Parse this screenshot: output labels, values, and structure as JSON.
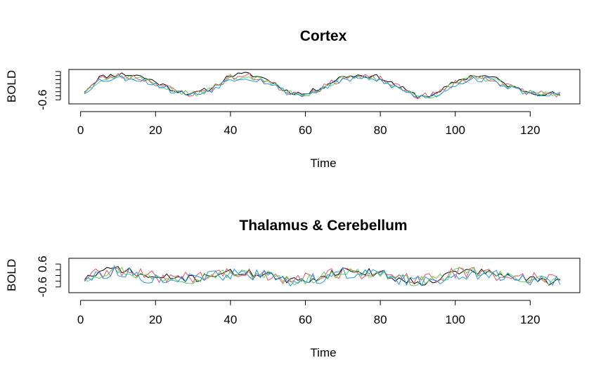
{
  "figure": {
    "panels_count": 2
  },
  "chart_data": [
    {
      "type": "line",
      "title": "Cortex",
      "xlabel": "Time",
      "ylabel": "BOLD",
      "xlim": [
        1,
        128
      ],
      "ylim": [
        -0.8,
        0.9
      ],
      "x_ticks": [
        0,
        20,
        40,
        60,
        80,
        100,
        120
      ],
      "y_ticks_labeled": [
        -0.6
      ],
      "y_ticks_minor": [
        -0.4,
        -0.2,
        0.0,
        0.2,
        0.4,
        0.6,
        0.8
      ],
      "grid": false,
      "legend": "none",
      "colors": [
        "#000000",
        "#df536b",
        "#61d04f",
        "#2297e6"
      ],
      "waveform": {
        "x": [
          1,
          5,
          10,
          15,
          20,
          25,
          30,
          35,
          40,
          45,
          50,
          55,
          60,
          65,
          70,
          75,
          80,
          85,
          90,
          95,
          100,
          105,
          110,
          115,
          120,
          125,
          128
        ],
        "y": [
          -0.2,
          0.45,
          0.6,
          0.55,
          0.25,
          -0.15,
          -0.35,
          -0.05,
          0.55,
          0.6,
          0.35,
          -0.2,
          -0.35,
          0.05,
          0.5,
          0.55,
          0.45,
          0.0,
          -0.45,
          -0.35,
          0.25,
          0.55,
          0.45,
          0.0,
          -0.25,
          -0.3,
          -0.35
        ]
      },
      "series": [
        {
          "color": "#000000",
          "offset": 0.04,
          "amp": 1.05,
          "noise": 0.12,
          "seed": 11
        },
        {
          "color": "#df536b",
          "offset": 0.0,
          "amp": 0.95,
          "noise": 0.16,
          "seed": 23
        },
        {
          "color": "#61d04f",
          "offset": -0.02,
          "amp": 0.95,
          "noise": 0.14,
          "seed": 37
        },
        {
          "color": "#2297e6",
          "offset": -0.05,
          "amp": 0.9,
          "noise": 0.15,
          "seed": 53
        }
      ]
    },
    {
      "type": "line",
      "title": "Thalamus & Cerebellum",
      "xlabel": "Time",
      "ylabel": "BOLD",
      "xlim": [
        1,
        128
      ],
      "ylim": [
        -0.9,
        0.9
      ],
      "x_ticks": [
        0,
        20,
        40,
        60,
        80,
        100,
        120
      ],
      "y_ticks_labeled": [
        -0.6,
        0.6
      ],
      "y_ticks_minor": [
        -0.3,
        0.0,
        0.3
      ],
      "grid": false,
      "legend": "none",
      "colors": [
        "#000000",
        "#df536b",
        "#61d04f",
        "#2297e6"
      ],
      "waveform": {
        "x": [
          1,
          5,
          10,
          15,
          20,
          25,
          30,
          35,
          40,
          45,
          50,
          55,
          60,
          65,
          70,
          75,
          80,
          85,
          90,
          95,
          100,
          105,
          110,
          115,
          120,
          125,
          128
        ],
        "y": [
          -0.15,
          0.1,
          0.35,
          0.05,
          -0.15,
          -0.1,
          -0.2,
          0.05,
          0.1,
          0.1,
          0.05,
          -0.3,
          -0.25,
          -0.05,
          0.25,
          0.15,
          0.1,
          -0.2,
          -0.35,
          -0.2,
          0.15,
          0.2,
          0.05,
          -0.1,
          -0.2,
          -0.3,
          -0.25
        ]
      },
      "series": [
        {
          "color": "#000000",
          "offset": 0.02,
          "amp": 1.1,
          "noise": 0.2,
          "seed": 71
        },
        {
          "color": "#df536b",
          "offset": 0.02,
          "amp": 0.6,
          "noise": 0.32,
          "seed": 89
        },
        {
          "color": "#61d04f",
          "offset": 0.0,
          "amp": 0.9,
          "noise": 0.26,
          "seed": 97
        },
        {
          "color": "#2297e6",
          "offset": -0.05,
          "amp": 0.85,
          "noise": 0.3,
          "seed": 113
        }
      ]
    }
  ]
}
